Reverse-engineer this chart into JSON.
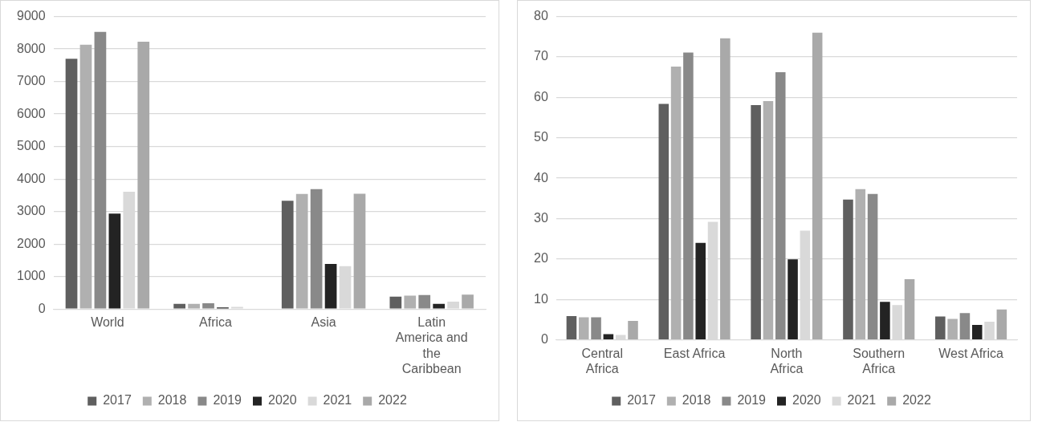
{
  "chart_data": [
    {
      "type": "bar",
      "categories": [
        "World",
        "Africa",
        "Asia",
        "Latin America and the Caribbean"
      ],
      "series": [
        {
          "name": "2017",
          "color": "#5f5f5f",
          "values": [
            7700,
            160,
            3330,
            380
          ]
        },
        {
          "name": "2018",
          "color": "#b0b0b0",
          "values": [
            8130,
            160,
            3540,
            410
          ]
        },
        {
          "name": "2019",
          "color": "#898989",
          "values": [
            8530,
            180,
            3690,
            430
          ]
        },
        {
          "name": "2020",
          "color": "#232323",
          "values": [
            2935,
            50,
            1385,
            160
          ]
        },
        {
          "name": "2021",
          "color": "#d9d9d9",
          "values": [
            3610,
            65,
            1320,
            230
          ]
        },
        {
          "name": "2022",
          "color": "#a9a9a9",
          "values": [
            8225,
            null,
            3550,
            445
          ]
        }
      ],
      "ylim": [
        0,
        9000
      ],
      "yticks": [
        0,
        1000,
        2000,
        3000,
        4000,
        5000,
        6000,
        7000,
        8000,
        9000
      ],
      "grid": "y",
      "legend": "bottom"
    },
    {
      "type": "bar",
      "categories": [
        "Central Africa",
        "East Africa",
        "North Africa",
        "Southern Africa",
        "West Africa"
      ],
      "series": [
        {
          "name": "2017",
          "color": "#5f5f5f",
          "values": [
            5.9,
            58.4,
            58.1,
            34.7,
            5.8
          ]
        },
        {
          "name": "2018",
          "color": "#b0b0b0",
          "values": [
            5.6,
            67.6,
            59.1,
            37.3,
            5.2
          ]
        },
        {
          "name": "2019",
          "color": "#898989",
          "values": [
            5.6,
            71.1,
            66.2,
            36.1,
            6.6
          ]
        },
        {
          "name": "2020",
          "color": "#232323",
          "values": [
            1.4,
            24.0,
            19.9,
            9.4,
            3.7
          ]
        },
        {
          "name": "2021",
          "color": "#d9d9d9",
          "values": [
            1.2,
            29.2,
            27.0,
            8.6,
            4.5
          ]
        },
        {
          "name": "2022",
          "color": "#a9a9a9",
          "values": [
            4.7,
            74.6,
            76.0,
            15.0,
            7.5
          ]
        }
      ],
      "ylim": [
        0,
        80
      ],
      "yticks": [
        0,
        10,
        20,
        30,
        40,
        50,
        60,
        70,
        80
      ],
      "grid": "y",
      "legend": "bottom"
    }
  ]
}
